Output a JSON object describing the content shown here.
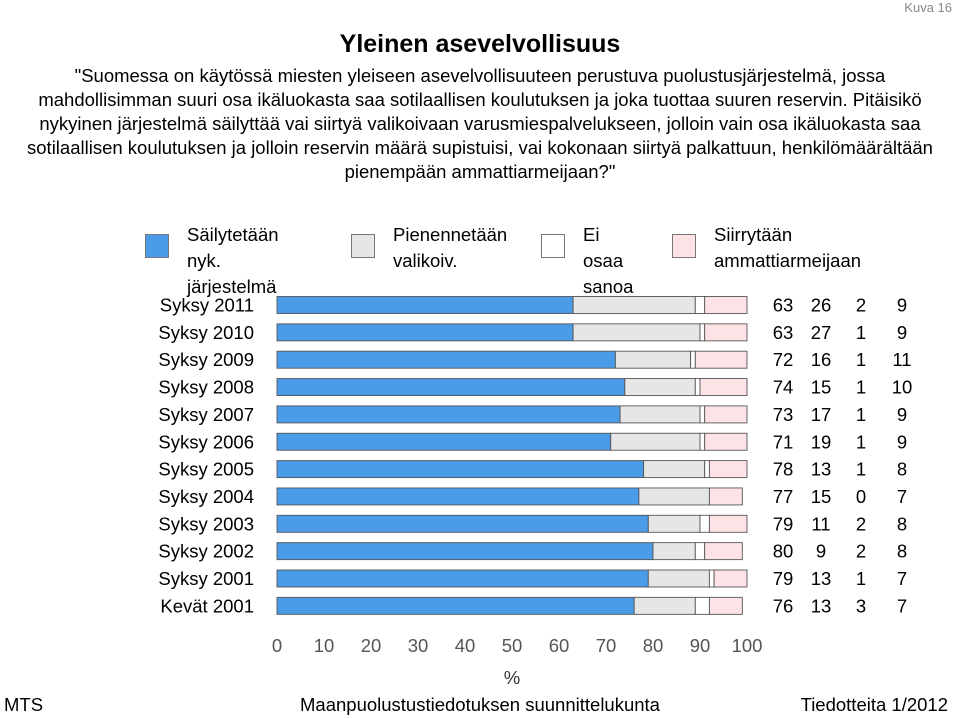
{
  "header": {
    "figure_label": "Kuva 16",
    "title": "Yleinen asevelvollisuus",
    "question": "\"Suomessa on käytössä miesten yleiseen asevelvollisuuteen perustuva puolustusjärjestelmä, jossa mahdollisimman suuri osa ikäluokasta saa sotilaallisen koulutuksen ja joka tuottaa suuren reservin. Pitäisikö nykyinen järjestelmä säilyttää vai siirtyä valikoivaan varusmiespalvelukseen, jolloin vain osa ikäluokasta saa sotilaallisen koulutuksen ja jolloin reservin määrä supistuisi, vai kokonaan siirtyä palkattuun, henkilömäärältään pienempään ammattiarmeijaan?\""
  },
  "legend": [
    {
      "label": "Säilytetään\nnyk. järjestelmä",
      "color": "#4a9be8"
    },
    {
      "label": "Pienennetään\nvalikoiv.",
      "color": "#e6e6e6"
    },
    {
      "label": "Ei osaa\nsanoa",
      "color": "#ffffff"
    },
    {
      "label": "Siirrytään\nammattiarmeijaan",
      "color": "#fde3e6"
    }
  ],
  "chart_data": {
    "type": "bar",
    "orientation": "horizontal",
    "stacked": true,
    "categories": [
      "Syksy 2011",
      "Syksy 2010",
      "Syksy 2009",
      "Syksy 2008",
      "Syksy 2007",
      "Syksy 2006",
      "Syksy 2005",
      "Syksy 2004",
      "Syksy 2003",
      "Syksy 2002",
      "Syksy 2001",
      "Kevät 2001"
    ],
    "series": [
      {
        "name": "Säilytetään nyk. järjestelmä",
        "color": "#4a9be8",
        "values": [
          63,
          63,
          72,
          74,
          73,
          71,
          78,
          77,
          79,
          80,
          79,
          76
        ]
      },
      {
        "name": "Pienennetään valikoiv.",
        "color": "#e6e6e6",
        "values": [
          26,
          27,
          16,
          15,
          17,
          19,
          13,
          15,
          11,
          9,
          13,
          13
        ]
      },
      {
        "name": "Ei osaa sanoa",
        "color": "#ffffff",
        "values": [
          2,
          1,
          1,
          1,
          1,
          1,
          1,
          0,
          2,
          2,
          1,
          3
        ]
      },
      {
        "name": "Siirrytään ammattiarmeijaan",
        "color": "#fde3e6",
        "values": [
          9,
          9,
          11,
          10,
          9,
          9,
          8,
          7,
          8,
          8,
          7,
          7
        ]
      }
    ],
    "xlim": [
      0,
      100
    ],
    "xticks": [
      "0",
      "10",
      "20",
      "30",
      "40",
      "50",
      "60",
      "70",
      "80",
      "90",
      "100"
    ],
    "xlabel": "%"
  },
  "footer": {
    "left": "MTS",
    "center": "Maanpuolustustiedotuksen suunnittelukunta",
    "right": "Tiedotteita 1/2012"
  }
}
